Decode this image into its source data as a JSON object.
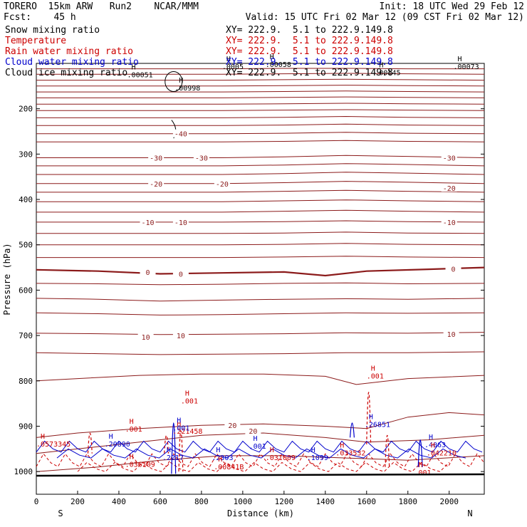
{
  "header": {
    "line1_left": "TORERO  15km ARW   Run2    NCAR/MMM",
    "line1_right": "Init: 18 UTC Wed 29 Feb 12",
    "line2_left": "Fcst:    45 h",
    "line2_right": "Valid: 15 UTC Fri 02 Mar 12 (09 CST Fri 02 Mar 12)"
  },
  "legend": [
    {
      "name": "Snow mixing ratio",
      "range": "XY= 222.9.  5.1 to 222.9.149.8",
      "color": "#000000"
    },
    {
      "name": "Temperature",
      "range": "XY= 222.9.  5.1 to 222.9.149.8",
      "color": "#cc0000"
    },
    {
      "name": "Rain water mixing ratio",
      "range": "XY= 222.9.  5.1 to 222.9.149.8",
      "color": "#cc0000"
    },
    {
      "name": "Cloud water mixing ratio",
      "range": "XY= 222.9.  5.1 to 222.9.149.8",
      "color": "#0000cc"
    },
    {
      "name": "Cloud ice mixing ratio",
      "range": "XY= 222.9.  5.1 to 222.9.149.8",
      "color": "#000000"
    }
  ],
  "chart_data": {
    "type": "line",
    "xlabel": "Distance (km)",
    "ylabel": "Pressure (hPa)",
    "xlim": [
      0,
      2170
    ],
    "ylim": [
      1050,
      100
    ],
    "x_ticks": [
      0,
      200,
      400,
      600,
      800,
      1000,
      1200,
      1400,
      1600,
      1800,
      2000
    ],
    "y_ticks": [
      200,
      300,
      400,
      500,
      600,
      700,
      800,
      900,
      1000
    ],
    "left_end_label": "S",
    "right_end_label": "N",
    "line_color": "#8b1a1a",
    "temperature_isotherms": [
      {
        "value": -40,
        "x": [
          0,
          300,
          600,
          900,
          1200,
          1500,
          1800,
          2170
        ],
        "p": [
          112,
          112,
          112,
          112,
          111,
          111,
          112,
          112
        ]
      },
      {
        "value": -40,
        "x": [
          0,
          300,
          600,
          900,
          1200,
          1500,
          1800,
          2170
        ],
        "p": [
          124,
          124,
          124,
          124,
          123,
          122,
          123,
          124
        ]
      },
      {
        "value": -40,
        "x": [
          0,
          300,
          600,
          900,
          1200,
          1500,
          1800,
          2170
        ],
        "p": [
          137,
          137,
          137,
          137,
          136,
          135,
          136,
          137
        ]
      },
      {
        "value": -40,
        "x": [
          0,
          300,
          600,
          900,
          1200,
          1500,
          1800,
          2170
        ],
        "p": [
          150,
          150,
          150,
          150,
          149,
          148,
          149,
          150
        ]
      },
      {
        "value": -40,
        "x": [
          0,
          300,
          600,
          900,
          1200,
          1500,
          1800,
          2170
        ],
        "p": [
          163,
          163,
          163,
          163,
          162,
          161,
          162,
          163
        ]
      },
      {
        "value": -40,
        "x": [
          0,
          300,
          600,
          900,
          1200,
          1500,
          1800,
          2170
        ],
        "p": [
          176,
          176,
          176,
          176,
          175,
          174,
          175,
          176
        ]
      },
      {
        "value": -40,
        "x": [
          0,
          300,
          600,
          900,
          1200,
          1500,
          1800,
          2170
        ],
        "p": [
          190,
          190,
          190,
          190,
          189,
          188,
          189,
          190
        ]
      },
      {
        "value": -40,
        "x": [
          0,
          300,
          600,
          900,
          1200,
          1500,
          1800,
          2170
        ],
        "p": [
          204,
          204,
          204,
          204,
          203,
          202,
          203,
          204
        ]
      },
      {
        "value": -40,
        "x": [
          0,
          300,
          600,
          900,
          1200,
          1500,
          1800,
          2170
        ],
        "p": [
          220,
          220,
          220,
          220,
          219,
          217,
          219,
          220
        ]
      },
      {
        "value": -40,
        "x": [
          0,
          300,
          600,
          900,
          1200,
          1500,
          1800,
          2170
        ],
        "p": [
          237,
          237,
          237,
          237,
          236,
          234,
          236,
          237
        ]
      },
      {
        "value": -40,
        "x": [
          0,
          300,
          600,
          900,
          1200,
          1500,
          1800,
          2170
        ],
        "p": [
          255,
          255,
          255,
          255,
          254,
          252,
          254,
          255
        ]
      },
      {
        "value": -40,
        "x": [
          0,
          300,
          600,
          900,
          1200,
          1500,
          1800,
          2170
        ],
        "p": [
          273,
          273,
          273,
          273,
          272,
          270,
          272,
          273
        ]
      },
      {
        "value": -30,
        "x": [
          0,
          300,
          600,
          900,
          1200,
          1500,
          1800,
          2170
        ],
        "p": [
          308,
          308,
          308,
          308,
          306,
          303,
          305,
          308
        ]
      },
      {
        "value": -30,
        "x": [
          0,
          300,
          600,
          900,
          1200,
          1500,
          1800,
          2170
        ],
        "p": [
          326,
          326,
          326,
          326,
          324,
          321,
          323,
          326
        ]
      },
      {
        "value": -30,
        "x": [
          0,
          300,
          600,
          900,
          1200,
          1500,
          1800,
          2170
        ],
        "p": [
          345,
          345,
          345,
          345,
          343,
          340,
          342,
          345
        ]
      },
      {
        "value": -20,
        "x": [
          0,
          300,
          600,
          900,
          1200,
          1500,
          1800,
          2170
        ],
        "p": [
          365,
          365,
          365,
          365,
          363,
          360,
          362,
          365
        ]
      },
      {
        "value": -20,
        "x": [
          0,
          300,
          600,
          900,
          1200,
          1500,
          1800,
          2170
        ],
        "p": [
          384,
          384,
          384,
          384,
          382,
          380,
          382,
          384
        ]
      },
      {
        "value": -20,
        "x": [
          0,
          300,
          600,
          900,
          1200,
          1500,
          1800,
          2170
        ],
        "p": [
          405,
          405,
          405,
          405,
          403,
          401,
          403,
          405
        ]
      },
      {
        "value": -20,
        "x": [
          0,
          300,
          600,
          900,
          1200,
          1500,
          1800,
          2170
        ],
        "p": [
          428,
          428,
          428,
          428,
          426,
          424,
          426,
          428
        ]
      },
      {
        "value": -10,
        "x": [
          0,
          300,
          600,
          900,
          1200,
          1500,
          1800,
          2170
        ],
        "p": [
          450,
          450,
          450,
          450,
          449,
          447,
          449,
          450
        ]
      },
      {
        "value": -10,
        "x": [
          0,
          300,
          600,
          900,
          1200,
          1500,
          1800,
          2170
        ],
        "p": [
          475,
          475,
          475,
          475,
          474,
          472,
          474,
          475
        ]
      },
      {
        "value": -10,
        "x": [
          0,
          300,
          600,
          900,
          1200,
          1500,
          1800,
          2170
        ],
        "p": [
          500,
          500,
          500,
          500,
          499,
          497,
          499,
          500
        ]
      },
      {
        "value": -10,
        "x": [
          0,
          300,
          600,
          900,
          1200,
          1500,
          1800,
          2170
        ],
        "p": [
          528,
          528,
          528,
          528,
          527,
          525,
          527,
          528
        ]
      },
      {
        "value": 0,
        "x": [
          0,
          300,
          600,
          900,
          1200,
          1400,
          1600,
          1900,
          2170
        ],
        "p": [
          555,
          558,
          564,
          562,
          560,
          568,
          558,
          554,
          550
        ],
        "bold": true
      },
      {
        "value": 0,
        "x": [
          0,
          300,
          600,
          900,
          1200,
          1500,
          1800,
          2170
        ],
        "p": [
          585,
          586,
          588,
          587,
          585,
          584,
          586,
          585
        ]
      },
      {
        "value": 0,
        "x": [
          0,
          300,
          600,
          900,
          1200,
          1500,
          1800,
          2170
        ],
        "p": [
          618,
          620,
          624,
          622,
          620,
          619,
          620,
          618
        ]
      },
      {
        "value": 10,
        "x": [
          0,
          300,
          600,
          900,
          1200,
          1500,
          1800,
          2170
        ],
        "p": [
          650,
          652,
          655,
          654,
          652,
          650,
          651,
          650
        ]
      },
      {
        "value": 10,
        "x": [
          0,
          300,
          600,
          900,
          1200,
          1500,
          1800,
          2170
        ],
        "p": [
          695,
          696,
          698,
          697,
          696,
          694,
          695,
          693
        ]
      },
      {
        "value": 10,
        "x": [
          0,
          300,
          600,
          900,
          1200,
          1500,
          1800,
          2170
        ],
        "p": [
          738,
          740,
          742,
          741,
          740,
          738,
          738,
          736
        ]
      },
      {
        "value": 10,
        "x": [
          0,
          200,
          500,
          800,
          1100,
          1400,
          1550,
          1800,
          2170
        ],
        "p": [
          800,
          795,
          788,
          785,
          785,
          790,
          808,
          795,
          788
        ]
      },
      {
        "value": 20,
        "x": [
          0,
          200,
          500,
          800,
          1100,
          1400,
          1600,
          1800,
          2000,
          2170
        ],
        "p": [
          925,
          915,
          905,
          898,
          895,
          900,
          905,
          880,
          870,
          875
        ]
      },
      {
        "value": 20,
        "x": [
          0,
          200,
          500,
          800,
          1100,
          1400,
          1600,
          1900,
          2170
        ],
        "p": [
          960,
          950,
          935,
          920,
          915,
          925,
          935,
          930,
          920
        ]
      },
      {
        "value": 20,
        "x": [
          0,
          300,
          600,
          900,
          1200,
          1500,
          1800,
          2170
        ],
        "p": [
          1000,
          990,
          975,
          965,
          965,
          970,
          975,
          965
        ]
      }
    ],
    "isotherm_labels": [
      {
        "text": "-40",
        "x": 700,
        "p": 255
      },
      {
        "text": "-30",
        "x": 580,
        "p": 308
      },
      {
        "text": "-30",
        "x": 800,
        "p": 308
      },
      {
        "text": "-30",
        "x": 2000,
        "p": 308
      },
      {
        "text": "-20",
        "x": 580,
        "p": 365
      },
      {
        "text": "-20",
        "x": 900,
        "p": 365
      },
      {
        "text": "-20",
        "x": 2000,
        "p": 375
      },
      {
        "text": "-10",
        "x": 540,
        "p": 450
      },
      {
        "text": "-10",
        "x": 700,
        "p": 450
      },
      {
        "text": "-10",
        "x": 2000,
        "p": 450
      },
      {
        "text": "0",
        "x": 540,
        "p": 560
      },
      {
        "text": "0",
        "x": 700,
        "p": 564
      },
      {
        "text": "0",
        "x": 2020,
        "p": 553
      },
      {
        "text": "10",
        "x": 530,
        "p": 703
      },
      {
        "text": "10",
        "x": 700,
        "p": 700
      },
      {
        "text": "10",
        "x": 2010,
        "p": 697
      },
      {
        "text": "20",
        "x": 950,
        "p": 898
      },
      {
        "text": "20",
        "x": 1050,
        "p": 910
      }
    ],
    "max_labels": [
      {
        "text": ".00051",
        "x": 440,
        "p": 126,
        "color": "#000000"
      },
      {
        "text": ".00998",
        "x": 670,
        "p": 155,
        "color": "#000000"
      },
      {
        "text": ".0005",
        "x": 900,
        "p": 108,
        "color": "#000000"
      },
      {
        "text": ".00058",
        "x": 1110,
        "p": 103,
        "color": "#000000"
      },
      {
        "text": ".00145",
        "x": 1640,
        "p": 121,
        "color": "#000000"
      },
      {
        "text": ".00073",
        "x": 2020,
        "p": 108,
        "color": "#000000"
      },
      {
        "text": ".001",
        "x": 1600,
        "p": 790,
        "color": "#cc0000"
      },
      {
        "text": ".001",
        "x": 700,
        "p": 845,
        "color": "#cc0000"
      },
      {
        "text": ".001",
        "x": 430,
        "p": 907,
        "color": "#cc0000"
      },
      {
        "text": ".221458",
        "x": 660,
        "p": 912,
        "color": "#cc0000"
      },
      {
        "text": ".001",
        "x": 660,
        "p": 905,
        "color": "#0000cc"
      },
      {
        "text": ".0573345",
        "x": 0,
        "p": 940,
        "color": "#cc0000"
      },
      {
        "text": ".20890",
        "x": 330,
        "p": 940,
        "color": "#0000cc"
      },
      {
        "text": ".036109",
        "x": 430,
        "p": 985,
        "color": "#cc0000"
      },
      {
        "text": ".2217",
        "x": 610,
        "p": 970,
        "color": "#0000cc"
      },
      {
        "text": ".2303",
        "x": 850,
        "p": 970,
        "color": "#0000cc"
      },
      {
        "text": ".00841B",
        "x": 860,
        "p": 990,
        "color": "#cc0000"
      },
      {
        "text": ".001",
        "x": 1030,
        "p": 945,
        "color": "#0000cc"
      },
      {
        "text": ".031009",
        "x": 1110,
        "p": 970,
        "color": "#cc0000"
      },
      {
        "text": ".1099",
        "x": 1310,
        "p": 970,
        "color": "#0000cc"
      },
      {
        "text": ".033532",
        "x": 1450,
        "p": 960,
        "color": "#cc0000"
      },
      {
        "text": ".26851",
        "x": 1590,
        "p": 897,
        "color": "#0000cc"
      },
      {
        "text": ".4063",
        "x": 1880,
        "p": 942,
        "color": "#0000cc"
      },
      {
        "text": ".042210",
        "x": 1890,
        "p": 960,
        "color": "#cc0000"
      },
      {
        "text": ".001",
        "x": 1830,
        "p": 1003,
        "color": "#cc0000"
      }
    ]
  }
}
